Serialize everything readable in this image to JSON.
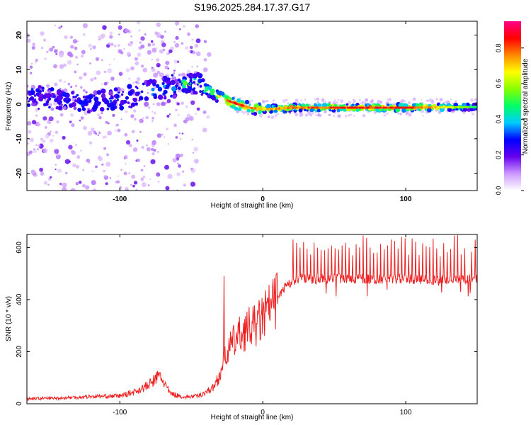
{
  "page_title": "S196.2025.284.17.37.G17",
  "colors": {
    "snr_line": "#ee2222",
    "spectral_stops": [
      "#ffffff",
      "#cc99ff",
      "#6600ee",
      "#0000ff",
      "#00ccff",
      "#00ff66",
      "#88ff00",
      "#ffff00",
      "#ff8800",
      "#ff0000",
      "#ff0088"
    ]
  },
  "chart_data": [
    {
      "id": "spectrogram",
      "type": "heatmap",
      "title": "S196.2025.284.17.37.G17",
      "xlabel": "Height of straight line (km)",
      "ylabel": "Frequency (Hz)",
      "xlim": [
        -165,
        150
      ],
      "ylim": [
        -25,
        24
      ],
      "xticks": [
        -100,
        0,
        100
      ],
      "xtick_labels": [
        "-100",
        "0",
        "100"
      ],
      "yticks": [
        -20,
        -10,
        0,
        10,
        20
      ],
      "ytick_labels": [
        "-20",
        "-10",
        "0",
        "10",
        "20"
      ],
      "ridge": {
        "x": [
          -165,
          -140,
          -120,
          -100,
          -85,
          -75,
          -65,
          -55,
          -45,
          -38,
          -32,
          -25,
          -18,
          -10,
          0,
          20,
          50,
          100,
          150
        ],
        "freq": [
          2,
          1.5,
          0.5,
          1.5,
          2.5,
          4,
          5,
          6,
          5.5,
          4,
          2.5,
          1,
          0,
          -1,
          -1.5,
          -1,
          -1,
          -1,
          -0.8
        ],
        "amplitude": [
          0.25,
          0.3,
          0.3,
          0.35,
          0.4,
          0.45,
          0.5,
          0.6,
          0.65,
          0.6,
          0.7,
          0.85,
          0.9,
          0.8,
          0.75,
          0.8,
          0.85,
          0.9,
          0.5
        ]
      },
      "colorbar": {
        "label": "Normalized spectral amplitude",
        "range": [
          0.0,
          0.95
        ],
        "ticks": [
          0.0,
          0.2,
          0.4,
          0.6,
          0.8
        ],
        "tick_labels": [
          "0.0",
          "0.2",
          "0.4",
          "0.6",
          "0.8"
        ]
      }
    },
    {
      "id": "snr",
      "type": "line",
      "xlabel": "Height of straight line (km)",
      "ylabel": "SNR (10 * v/v)",
      "xlim": [
        -165,
        150
      ],
      "ylim": [
        0,
        650
      ],
      "xticks": [
        -100,
        0,
        100
      ],
      "xtick_labels": [
        "-100",
        "0",
        "100"
      ],
      "yticks": [
        0,
        200,
        400,
        600
      ],
      "ytick_labels": [
        "0",
        "200",
        "400",
        "600"
      ],
      "series": [
        {
          "name": "SNR",
          "x": [
            -165,
            -140,
            -120,
            -100,
            -90,
            -80,
            -72,
            -65,
            -55,
            -45,
            -40,
            -35,
            -30,
            -28,
            -25,
            -20,
            -15,
            -10,
            -5,
            0,
            5,
            10,
            15,
            20,
            25,
            30,
            40,
            60,
            80,
            100,
            120,
            140,
            150
          ],
          "y": [
            20,
            22,
            28,
            30,
            45,
            70,
            110,
            40,
            25,
            30,
            45,
            60,
            110,
            160,
            200,
            240,
            270,
            290,
            300,
            330,
            370,
            400,
            440,
            470,
            480,
            480,
            480,
            480,
            478,
            482,
            475,
            478,
            480
          ]
        }
      ]
    }
  ]
}
